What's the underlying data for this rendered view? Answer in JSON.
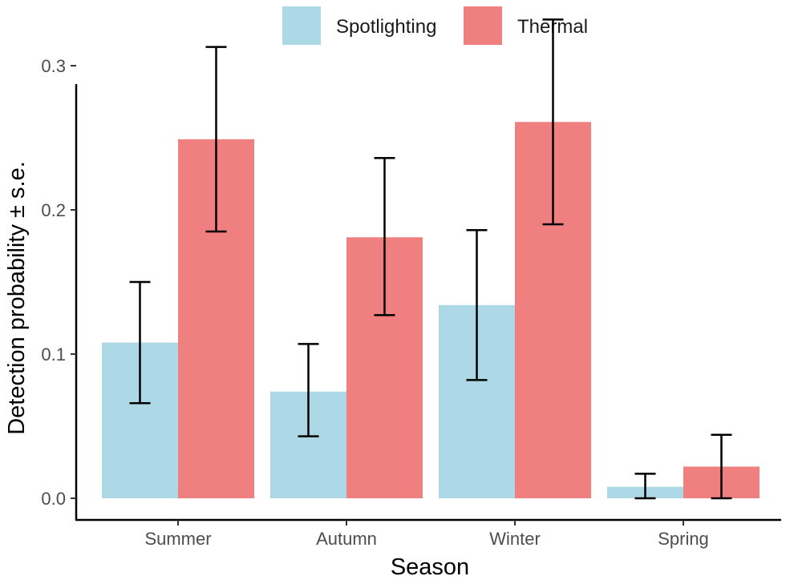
{
  "chart_data": {
    "type": "bar",
    "xlabel": "Season",
    "ylabel": "Detection probability ± s.e.",
    "categories": [
      "Summer",
      "Autumn",
      "Winter",
      "Spring"
    ],
    "series": [
      {
        "name": "Spotlighting",
        "color": "#add8e6",
        "values": [
          0.108,
          0.074,
          0.134,
          0.008
        ],
        "se_low": [
          0.066,
          0.043,
          0.082,
          0.0
        ],
        "se_high": [
          0.15,
          0.107,
          0.186,
          0.017
        ]
      },
      {
        "name": "Thermal",
        "color": "#f08080",
        "values": [
          0.249,
          0.181,
          0.261,
          0.022
        ],
        "se_low": [
          0.185,
          0.127,
          0.19,
          0.0
        ],
        "se_high": [
          0.313,
          0.236,
          0.332,
          0.044
        ]
      }
    ],
    "yticks": [
      0.0,
      0.1,
      0.2,
      0.3
    ],
    "ytick_labels": [
      "0.0",
      "0.1",
      "0.2",
      "0.3"
    ],
    "ylim": [
      0,
      0.345
    ],
    "grid": false,
    "legend_position": "top"
  }
}
